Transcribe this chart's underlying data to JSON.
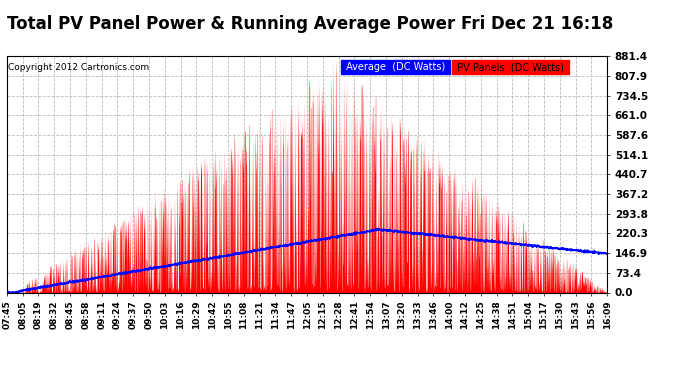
{
  "title": "Total PV Panel Power & Running Average Power Fri Dec 21 16:18",
  "copyright": "Copyright 2012 Cartronics.com",
  "legend_avg": "Average  (DC Watts)",
  "legend_pv": "PV Panels  (DC Watts)",
  "ymax": 881.4,
  "ymin": 0.0,
  "yticks": [
    0.0,
    73.4,
    146.9,
    220.3,
    293.8,
    367.2,
    440.7,
    514.1,
    587.6,
    661.0,
    734.5,
    807.9,
    881.4
  ],
  "background_color": "#ffffff",
  "grid_color": "#bbbbbb",
  "bar_color": "#ff0000",
  "line_color": "#0000ff",
  "title_fontsize": 12,
  "xtick_labels": [
    "07:45",
    "08:05",
    "08:19",
    "08:32",
    "08:45",
    "08:58",
    "09:11",
    "09:24",
    "09:37",
    "09:50",
    "10:03",
    "10:16",
    "10:29",
    "10:42",
    "10:55",
    "11:08",
    "11:21",
    "11:34",
    "11:47",
    "12:05",
    "12:15",
    "12:28",
    "12:41",
    "12:54",
    "13:07",
    "13:20",
    "13:33",
    "13:46",
    "14:00",
    "14:12",
    "14:25",
    "14:38",
    "14:51",
    "15:04",
    "15:17",
    "15:30",
    "15:43",
    "15:56",
    "16:09"
  ]
}
